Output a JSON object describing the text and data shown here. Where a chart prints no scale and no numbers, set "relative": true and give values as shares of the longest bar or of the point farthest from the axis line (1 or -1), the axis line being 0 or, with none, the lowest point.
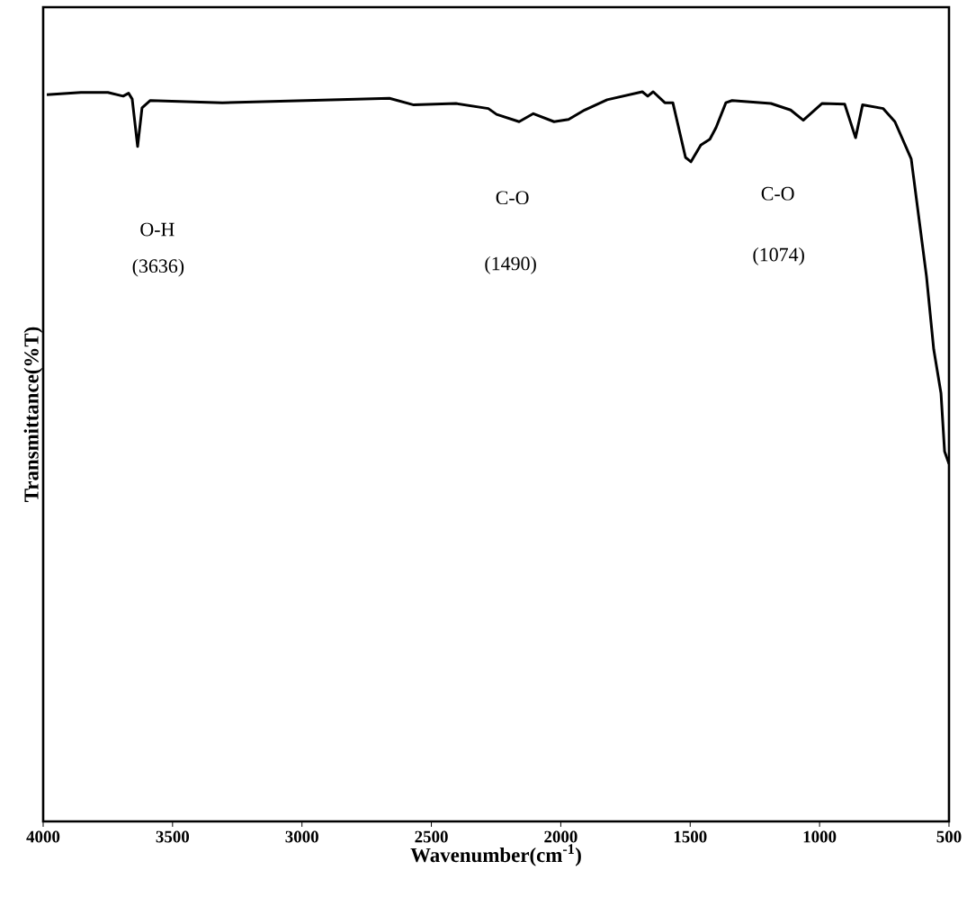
{
  "chart_data": {
    "type": "line",
    "relative": true,
    "xlabel": "Wavenumber(cm$^{-1}$)",
    "ylabel": "Transmittance(%T)",
    "xlim": [
      4000,
      500
    ],
    "xticks": [
      4000,
      3500,
      3000,
      2500,
      2000,
      1500,
      1000,
      500
    ],
    "annotations": [
      "O-H",
      "(3636)",
      "C-O",
      "(1490)",
      "C-O",
      "(1074)"
    ],
    "series": [
      {
        "color": "#000000",
        "x": [
          3986,
          3854,
          3750,
          3691,
          3670,
          3656,
          3635,
          3618,
          3586,
          3308,
          2985,
          2662,
          2568,
          2405,
          2280,
          2248,
          2161,
          2106,
          2026,
          1970,
          1908,
          1821,
          1685,
          1664,
          1643,
          1598,
          1567,
          1518,
          1497,
          1459,
          1424,
          1400,
          1362,
          1338,
          1188,
          1112,
          1063,
          990,
          903,
          861,
          834,
          754,
          709,
          646,
          587,
          559,
          531,
          517,
          500
        ],
        "values": [
          0.996,
          0.999,
          0.999,
          0.994,
          0.998,
          0.99,
          0.925,
          0.978,
          0.988,
          0.985,
          0.988,
          0.991,
          0.982,
          0.984,
          0.977,
          0.969,
          0.959,
          0.97,
          0.959,
          0.962,
          0.975,
          0.989,
          1.0,
          0.994,
          1.0,
          0.985,
          0.985,
          0.91,
          0.904,
          0.927,
          0.935,
          0.951,
          0.985,
          0.988,
          0.984,
          0.975,
          0.961,
          0.984,
          0.983,
          0.937,
          0.982,
          0.977,
          0.959,
          0.908,
          0.747,
          0.647,
          0.587,
          0.507,
          0.49
        ]
      }
    ]
  }
}
